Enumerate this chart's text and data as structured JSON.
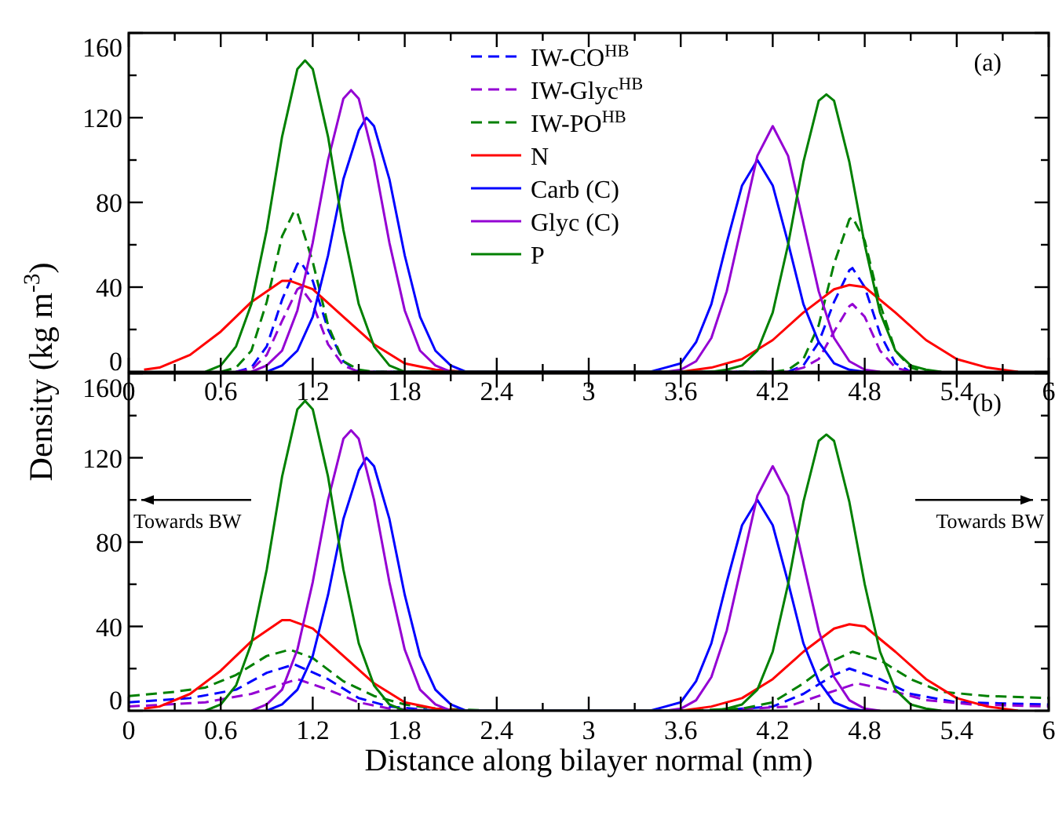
{
  "chart_data": [
    {
      "type": "line",
      "ylabel": "Density (kg m$^{-3}$)",
      "annotations": [
        "(a)"
      ],
      "xlim": [
        0,
        6
      ],
      "ylim": [
        0,
        160
      ],
      "xticks": [
        0,
        {
          "value": 0.3,
          "label": null
        },
        0.6,
        {
          "value": 0.9,
          "label": null
        },
        1.2,
        {
          "value": 1.5,
          "label": null
        },
        1.8,
        {
          "value": 2.1,
          "label": null
        },
        2.4,
        {
          "value": 2.7,
          "label": null
        },
        3,
        {
          "value": 3.3,
          "label": null
        },
        3.6,
        {
          "value": 3.9,
          "label": null
        },
        4.2,
        {
          "value": 4.5,
          "label": null
        },
        4.8,
        {
          "value": 5.1,
          "label": null
        },
        5.4,
        {
          "value": 5.7,
          "label": null
        },
        6
      ],
      "yticks": [
        0,
        {
          "value": 20,
          "label": null
        },
        40,
        {
          "value": 60,
          "label": null
        },
        80,
        {
          "value": 100,
          "label": null
        },
        120,
        {
          "value": 140,
          "label": null
        },
        160
      ],
      "grid": false,
      "legend": "top",
      "series": [
        {
          "name": "IW-CO$^{HB}$",
          "color": "#0000ff",
          "line_style": "dashed",
          "x": [
            0.7,
            0.8,
            0.9,
            1.0,
            1.1,
            1.12,
            1.2,
            1.3,
            1.4,
            1.5,
            4.3,
            4.4,
            4.5,
            4.6,
            4.7,
            4.72,
            4.8,
            4.9,
            5.0,
            5.1
          ],
          "values": [
            0,
            2,
            12,
            34,
            51,
            52,
            43,
            20,
            5,
            0,
            0,
            3,
            14,
            33,
            48,
            49,
            40,
            18,
            4,
            0
          ]
        },
        {
          "name": "IW-Glyc$^{HB}$",
          "color": "#9400d3",
          "line_style": "dashed",
          "x": [
            0.7,
            0.8,
            0.9,
            1.0,
            1.1,
            1.12,
            1.2,
            1.3,
            1.4,
            1.5,
            4.3,
            4.4,
            4.5,
            4.6,
            4.7,
            4.72,
            4.8,
            4.9,
            5.0,
            5.1
          ],
          "values": [
            0,
            1,
            8,
            24,
            39,
            40,
            32,
            13,
            3,
            0,
            0,
            2,
            6,
            19,
            31,
            32,
            26,
            10,
            2,
            0
          ]
        },
        {
          "name": "IW-PO$^{HB}$",
          "color": "#008000",
          "line_style": "dashed",
          "x": [
            0.6,
            0.7,
            0.8,
            0.9,
            1.0,
            1.08,
            1.1,
            1.2,
            1.3,
            1.4,
            1.5,
            1.6,
            4.2,
            4.3,
            4.4,
            4.5,
            4.6,
            4.7,
            4.72,
            4.8,
            4.9,
            5.0,
            5.1,
            5.2
          ],
          "values": [
            0,
            2,
            10,
            33,
            64,
            76,
            75,
            52,
            22,
            5,
            1,
            0,
            0,
            1,
            6,
            22,
            51,
            72,
            73,
            62,
            32,
            10,
            2,
            0
          ]
        },
        {
          "name": "N",
          "color": "#ff0000",
          "line_style": "solid",
          "x": [
            0.1,
            0.2,
            0.4,
            0.6,
            0.8,
            1.0,
            1.05,
            1.2,
            1.4,
            1.6,
            1.8,
            2.0,
            2.2,
            3.6,
            3.8,
            4.0,
            4.2,
            4.4,
            4.6,
            4.7,
            4.8,
            5.0,
            5.2,
            5.4,
            5.6,
            5.8
          ],
          "values": [
            1,
            2,
            8,
            19,
            33,
            43,
            43,
            39,
            26,
            13,
            4,
            1,
            0,
            0,
            2,
            6,
            15,
            28,
            39,
            41,
            40,
            28,
            15,
            6,
            2,
            0
          ]
        },
        {
          "name": "Carb (C)",
          "color": "#0000ff",
          "line_style": "solid",
          "x": [
            0.9,
            1.0,
            1.1,
            1.2,
            1.3,
            1.4,
            1.5,
            1.55,
            1.6,
            1.7,
            1.8,
            1.9,
            2.0,
            2.1,
            2.2,
            3.4,
            3.5,
            3.6,
            3.7,
            3.8,
            3.9,
            4.0,
            4.1,
            4.2,
            4.3,
            4.4,
            4.5,
            4.6,
            4.7,
            4.8
          ],
          "values": [
            0,
            3,
            10,
            26,
            55,
            91,
            114,
            120,
            116,
            91,
            55,
            26,
            10,
            3,
            0,
            0,
            2,
            4,
            14,
            32,
            61,
            88,
            100,
            88,
            61,
            32,
            14,
            4,
            1,
            0
          ]
        },
        {
          "name": "Glyc (C)",
          "color": "#9400d3",
          "line_style": "solid",
          "x": [
            0.8,
            0.9,
            1.0,
            1.1,
            1.2,
            1.3,
            1.4,
            1.45,
            1.5,
            1.6,
            1.7,
            1.8,
            1.9,
            2.0,
            2.1,
            3.5,
            3.6,
            3.7,
            3.8,
            3.9,
            4.0,
            4.1,
            4.2,
            4.3,
            4.4,
            4.5,
            4.6,
            4.7,
            4.8,
            4.9
          ],
          "values": [
            0,
            3,
            10,
            29,
            61,
            100,
            129,
            133,
            129,
            100,
            61,
            29,
            10,
            3,
            0,
            0,
            1,
            5,
            16,
            38,
            70,
            102,
            116,
            102,
            70,
            38,
            16,
            5,
            1,
            0
          ]
        },
        {
          "name": "P",
          "color": "#008000",
          "line_style": "solid",
          "x": [
            0.5,
            0.6,
            0.7,
            0.8,
            0.9,
            1.0,
            1.1,
            1.15,
            1.2,
            1.3,
            1.4,
            1.5,
            1.6,
            1.7,
            1.8,
            3.8,
            3.9,
            4.0,
            4.1,
            4.2,
            4.3,
            4.4,
            4.5,
            4.55,
            4.6,
            4.7,
            4.8,
            4.9,
            5.0,
            5.1,
            5.2,
            5.3
          ],
          "values": [
            0,
            3,
            12,
            32,
            67,
            111,
            143,
            147,
            143,
            111,
            67,
            32,
            12,
            3,
            0,
            0,
            1,
            3,
            10,
            28,
            60,
            99,
            128,
            131,
            128,
            99,
            60,
            28,
            10,
            3,
            1,
            0
          ]
        }
      ]
    },
    {
      "type": "line",
      "xlabel": "Distance along bilayer normal (nm)",
      "annotations": [
        "(b)",
        "Towards BW",
        "Towards BW"
      ],
      "xlim": [
        0,
        6
      ],
      "ylim": [
        0,
        160
      ],
      "xticks": [
        0,
        {
          "value": 0.3,
          "label": null
        },
        0.6,
        {
          "value": 0.9,
          "label": null
        },
        1.2,
        {
          "value": 1.5,
          "label": null
        },
        1.8,
        {
          "value": 2.1,
          "label": null
        },
        2.4,
        {
          "value": 2.7,
          "label": null
        },
        3,
        {
          "value": 3.3,
          "label": null
        },
        3.6,
        {
          "value": 3.9,
          "label": null
        },
        4.2,
        {
          "value": 4.5,
          "label": null
        },
        4.8,
        {
          "value": 5.1,
          "label": null
        },
        5.4,
        {
          "value": 5.7,
          "label": null
        },
        6
      ],
      "yticks": [
        0,
        {
          "value": 20,
          "label": null
        },
        40,
        {
          "value": 60,
          "label": null
        },
        80,
        {
          "value": 100,
          "label": null
        },
        120,
        {
          "value": 140,
          "label": null
        },
        160
      ],
      "grid": false,
      "legend": false,
      "series": [
        {
          "color": "#0000ff",
          "line_style": "dashed",
          "x": [
            0,
            0.4,
            0.7,
            0.9,
            1.08,
            1.3,
            1.5,
            1.7,
            2.0,
            3.8,
            4.2,
            4.4,
            4.6,
            4.7,
            4.9,
            5.1,
            5.4,
            6
          ],
          "values": [
            4,
            6,
            10,
            18,
            22,
            15,
            6,
            2,
            0,
            0,
            2,
            8,
            17,
            20,
            15,
            8,
            4,
            3
          ]
        },
        {
          "color": "#9400d3",
          "line_style": "dashed",
          "x": [
            0,
            0.5,
            0.8,
            1.1,
            1.3,
            1.5,
            1.7,
            2.0,
            3.8,
            4.3,
            4.5,
            4.75,
            4.95,
            5.2,
            5.5,
            6
          ],
          "values": [
            2,
            4,
            8,
            15,
            10,
            4,
            1,
            0,
            0,
            2,
            7,
            13,
            10,
            5,
            3,
            2
          ]
        },
        {
          "color": "#008000",
          "line_style": "dashed",
          "x": [
            0,
            0.3,
            0.5,
            0.7,
            0.9,
            1.05,
            1.2,
            1.4,
            1.6,
            1.8,
            2.0,
            2.4,
            3.6,
            4.0,
            4.2,
            4.4,
            4.6,
            4.72,
            4.9,
            5.1,
            5.3,
            5.6,
            6
          ],
          "values": [
            7,
            9,
            11,
            17,
            26,
            29,
            25,
            14,
            7,
            3,
            1,
            0,
            0,
            1,
            4,
            13,
            24,
            28,
            24,
            15,
            9,
            7,
            6
          ]
        },
        {
          "color": "#ff0000",
          "line_style": "solid",
          "x": [
            0.1,
            0.2,
            0.4,
            0.6,
            0.8,
            1.0,
            1.05,
            1.2,
            1.4,
            1.6,
            1.8,
            2.0,
            2.2,
            3.6,
            3.8,
            4.0,
            4.2,
            4.4,
            4.6,
            4.7,
            4.8,
            5.0,
            5.2,
            5.4,
            5.6,
            5.8
          ],
          "values": [
            1,
            2,
            8,
            19,
            33,
            43,
            43,
            39,
            26,
            13,
            4,
            1,
            0,
            0,
            2,
            6,
            15,
            28,
            39,
            41,
            40,
            28,
            15,
            6,
            2,
            0
          ]
        },
        {
          "color": "#0000ff",
          "line_style": "solid",
          "x": [
            0.9,
            1.0,
            1.1,
            1.2,
            1.3,
            1.4,
            1.5,
            1.55,
            1.6,
            1.7,
            1.8,
            1.9,
            2.0,
            2.1,
            2.2,
            3.4,
            3.5,
            3.6,
            3.7,
            3.8,
            3.9,
            4.0,
            4.1,
            4.2,
            4.3,
            4.4,
            4.5,
            4.6,
            4.7,
            4.8
          ],
          "values": [
            0,
            3,
            10,
            26,
            55,
            91,
            114,
            120,
            116,
            91,
            55,
            26,
            10,
            3,
            0,
            0,
            2,
            4,
            14,
            32,
            61,
            88,
            100,
            88,
            61,
            32,
            14,
            4,
            1,
            0
          ]
        },
        {
          "color": "#9400d3",
          "line_style": "solid",
          "x": [
            0.8,
            0.9,
            1.0,
            1.1,
            1.2,
            1.3,
            1.4,
            1.45,
            1.5,
            1.6,
            1.7,
            1.8,
            1.9,
            2.0,
            2.1,
            3.5,
            3.6,
            3.7,
            3.8,
            3.9,
            4.0,
            4.1,
            4.2,
            4.3,
            4.4,
            4.5,
            4.6,
            4.7,
            4.8,
            4.9
          ],
          "values": [
            0,
            3,
            10,
            29,
            61,
            100,
            129,
            133,
            129,
            100,
            61,
            29,
            10,
            3,
            0,
            0,
            1,
            5,
            16,
            38,
            70,
            102,
            116,
            102,
            70,
            38,
            16,
            5,
            1,
            0
          ]
        },
        {
          "color": "#008000",
          "line_style": "solid",
          "x": [
            0.5,
            0.6,
            0.7,
            0.8,
            0.9,
            1.0,
            1.1,
            1.15,
            1.2,
            1.3,
            1.4,
            1.5,
            1.6,
            1.7,
            1.8,
            3.8,
            3.9,
            4.0,
            4.1,
            4.2,
            4.3,
            4.4,
            4.5,
            4.55,
            4.6,
            4.7,
            4.8,
            4.9,
            5.0,
            5.1,
            5.2,
            5.3
          ],
          "values": [
            0,
            3,
            12,
            32,
            67,
            111,
            143,
            147,
            143,
            111,
            67,
            32,
            12,
            3,
            0,
            0,
            1,
            3,
            10,
            28,
            60,
            99,
            128,
            131,
            128,
            99,
            60,
            28,
            10,
            3,
            1,
            0
          ]
        }
      ]
    }
  ]
}
